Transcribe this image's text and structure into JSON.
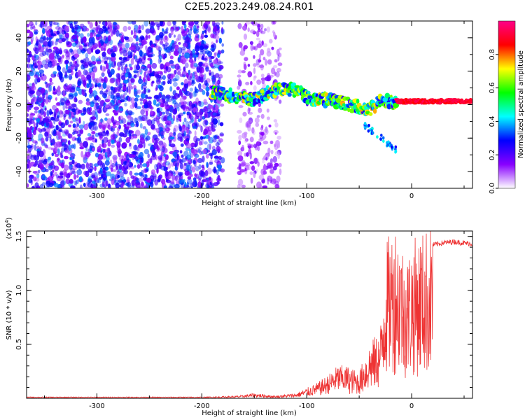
{
  "figure": {
    "title": "C2E5.2023.249.08.24.R01"
  },
  "chart_data": [
    {
      "type": "heatmap",
      "xlabel": "Height of straight line (km)",
      "ylabel": "Frequency (Hz)",
      "xlim": [
        -367,
        58
      ],
      "ylim": [
        -50,
        50
      ],
      "xticks": [
        -300,
        -200,
        -100,
        0
      ],
      "yticks": [
        -40,
        -20,
        0,
        20,
        40
      ],
      "colorbar": {
        "label": "Normalized spectral amplitude",
        "range": [
          0,
          1
        ],
        "ticks": [
          "0.0",
          "0.2",
          "0.4",
          "0.6",
          "0.8"
        ],
        "colormap": [
          "#ffffff",
          "#8800ff",
          "#0000ff",
          "#00ffff",
          "#00ff00",
          "#ffff00",
          "#ff0000",
          "#ff0088"
        ]
      },
      "regions": [
        {
          "label": "noise",
          "x": [
            -367,
            -180
          ],
          "y": [
            -50,
            50
          ],
          "amplitude": 0.3
        },
        {
          "label": "scattered noise",
          "x": [
            -165,
            -125
          ],
          "y": [
            -50,
            50
          ],
          "amplitude": 0.15
        },
        {
          "label": "signal",
          "amplitude": 0.7,
          "x": [
            -190,
            -170,
            -150,
            -130,
            -110,
            -100,
            -80,
            -60,
            -40,
            -30,
            -20,
            -10,
            0,
            20,
            40,
            58
          ],
          "y": [
            8,
            5,
            3,
            9,
            9,
            4,
            3,
            0,
            -3,
            2,
            2,
            2,
            2,
            2,
            2,
            2
          ]
        }
      ]
    },
    {
      "type": "line",
      "xlabel": "Height of straight line (km)",
      "ylabel": "SNR (10 * v/v)",
      "scale_label_base": "(x10",
      "scale_label_exp": "4",
      "scale_label_close": ")",
      "xlim": [
        -367,
        58
      ],
      "ylim": [
        0,
        1.55
      ],
      "xticks": [
        -300,
        -200,
        -100,
        0
      ],
      "yticks": [
        "0.5",
        "1.0",
        "1.5"
      ],
      "color": "#ee3333",
      "envelope": {
        "x": [
          -367,
          -200,
          -165,
          -150,
          -130,
          -110,
          -100,
          -90,
          -80,
          -70,
          -60,
          -50,
          -40,
          -30,
          -25,
          -20,
          -15,
          -10,
          -5,
          0,
          10,
          20,
          30,
          40,
          58
        ],
        "y": [
          0.01,
          0.01,
          0.02,
          0.04,
          0.02,
          0.04,
          0.08,
          0.12,
          0.18,
          0.26,
          0.25,
          0.22,
          0.45,
          0.55,
          1.25,
          1.35,
          1.45,
          1.3,
          1.15,
          1.28,
          1.35,
          1.42,
          1.44,
          1.45,
          1.43
        ]
      }
    }
  ]
}
